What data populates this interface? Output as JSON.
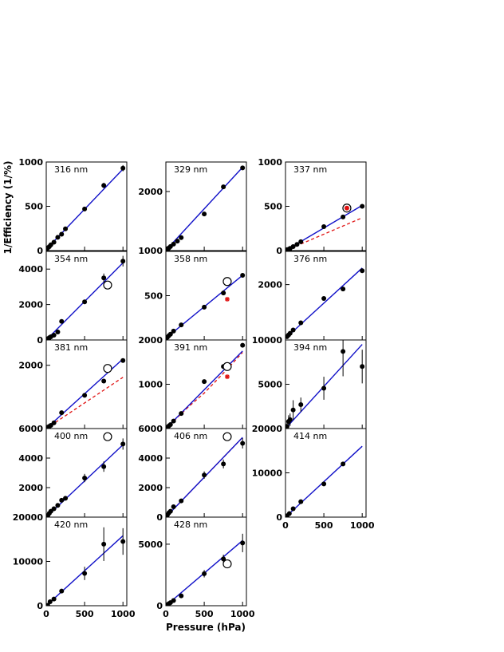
{
  "figure": {
    "ylabel": "1/Efficiency (1/%)",
    "xlabel": "Pressure (hPa)",
    "x_tick_labels": [
      "0",
      "500",
      "1000"
    ]
  },
  "colors": {
    "fit_line": "#1010c8",
    "dashed_line": "#e01010",
    "points": "#000000",
    "star_marker": "#e01010",
    "axes": "#000000"
  },
  "chart_data": [
    {
      "type": "scatter",
      "label": "316 nm",
      "xlim": [
        0,
        1050
      ],
      "ylim": [
        0,
        1000
      ],
      "yticks": [
        0,
        500,
        1000
      ],
      "yticklabels": [
        "0",
        "500",
        "1000"
      ],
      "points": [
        [
          20,
          30
        ],
        [
          40,
          45
        ],
        [
          60,
          65
        ],
        [
          100,
          95
        ],
        [
          150,
          150
        ],
        [
          200,
          185
        ],
        [
          250,
          245
        ],
        [
          500,
          470
        ],
        [
          750,
          735
        ],
        [
          1000,
          930
        ]
      ],
      "yerr": [
        0,
        0,
        0,
        0,
        0,
        0,
        0,
        20,
        30,
        35
      ],
      "fit": [
        [
          0,
          15
        ],
        [
          1000,
          920
        ]
      ]
    },
    {
      "type": "scatter",
      "label": "329 nm",
      "xlim": [
        0,
        1050
      ],
      "ylim": [
        1000,
        2500
      ],
      "yticks": [
        1000,
        2000
      ],
      "yticklabels": [
        "1000",
        "2000"
      ],
      "points": [
        [
          20,
          1030
        ],
        [
          40,
          1045
        ],
        [
          60,
          1070
        ],
        [
          100,
          1110
        ],
        [
          150,
          1160
        ],
        [
          200,
          1220
        ],
        [
          500,
          1620
        ],
        [
          750,
          2080
        ],
        [
          1000,
          2400
        ]
      ],
      "fit": [
        [
          0,
          1005
        ],
        [
          1000,
          2410
        ]
      ]
    },
    {
      "type": "scatter",
      "label": "337 nm",
      "xlim": [
        0,
        1050
      ],
      "ylim": [
        0,
        1000
      ],
      "yticks": [
        0,
        500,
        1000
      ],
      "yticklabels": [
        "0",
        "500",
        "1000"
      ],
      "points": [
        [
          20,
          10
        ],
        [
          40,
          15
        ],
        [
          60,
          25
        ],
        [
          100,
          45
        ],
        [
          150,
          70
        ],
        [
          200,
          100
        ],
        [
          500,
          270
        ],
        [
          750,
          380
        ],
        [
          1000,
          500
        ]
      ],
      "fit": [
        [
          0,
          0
        ],
        [
          1000,
          510
        ]
      ],
      "dashed": [
        [
          0,
          0
        ],
        [
          1000,
          370
        ]
      ],
      "circled_star": [
        800,
        480
      ]
    },
    {
      "type": "scatter",
      "label": "354 nm",
      "xlim": [
        0,
        1050
      ],
      "ylim": [
        0,
        5000
      ],
      "yticks": [
        0,
        2000,
        4000
      ],
      "yticklabels": [
        "0",
        "2000",
        "4000"
      ],
      "points": [
        [
          20,
          70
        ],
        [
          40,
          130
        ],
        [
          60,
          180
        ],
        [
          100,
          270
        ],
        [
          150,
          450
        ],
        [
          200,
          1050
        ],
        [
          500,
          2150
        ],
        [
          750,
          3500
        ],
        [
          1000,
          4450
        ]
      ],
      "yerr": [
        0,
        0,
        0,
        0,
        0,
        0,
        0,
        250,
        300
      ],
      "fit": [
        [
          0,
          0
        ],
        [
          1000,
          4350
        ]
      ],
      "open_circle": [
        800,
        3100
      ]
    },
    {
      "type": "scatter",
      "label": "358 nm",
      "xlim": [
        0,
        1050
      ],
      "ylim": [
        0,
        1000
      ],
      "yticks": [
        500
      ],
      "yticklabels": [
        "500"
      ],
      "points": [
        [
          20,
          30
        ],
        [
          40,
          50
        ],
        [
          60,
          65
        ],
        [
          100,
          100
        ],
        [
          200,
          170
        ],
        [
          500,
          370
        ],
        [
          750,
          530
        ],
        [
          1000,
          730
        ]
      ],
      "fit": [
        [
          0,
          20
        ],
        [
          1000,
          730
        ]
      ],
      "open_circle": [
        800,
        660
      ],
      "star": [
        800,
        460
      ]
    },
    {
      "type": "scatter",
      "label": "376 nm",
      "xlim": [
        0,
        1050
      ],
      "ylim": [
        1000,
        2600
      ],
      "yticks": [
        2000
      ],
      "yticklabels": [
        "2000"
      ],
      "points": [
        [
          20,
          1060
        ],
        [
          40,
          1090
        ],
        [
          60,
          1120
        ],
        [
          100,
          1180
        ],
        [
          200,
          1310
        ],
        [
          500,
          1750
        ],
        [
          750,
          1920
        ],
        [
          1000,
          2250
        ]
      ],
      "fit": [
        [
          0,
          1030
        ],
        [
          1000,
          2300
        ]
      ]
    },
    {
      "type": "scatter",
      "label": "381 nm",
      "xlim": [
        0,
        1050
      ],
      "ylim": [
        0,
        2800
      ],
      "yticks": [
        2000
      ],
      "yticklabels": [
        "2000"
      ],
      "points": [
        [
          20,
          40
        ],
        [
          40,
          70
        ],
        [
          60,
          100
        ],
        [
          100,
          180
        ],
        [
          200,
          500
        ],
        [
          500,
          1050
        ],
        [
          750,
          1500
        ],
        [
          1000,
          2150
        ]
      ],
      "fit": [
        [
          0,
          0
        ],
        [
          1000,
          2200
        ]
      ],
      "dashed": [
        [
          0,
          0
        ],
        [
          1000,
          1620
        ]
      ],
      "open_circle": [
        800,
        1900
      ]
    },
    {
      "type": "scatter",
      "label": "391 nm",
      "xlim": [
        0,
        1050
      ],
      "ylim": [
        0,
        2000
      ],
      "yticks": [
        1000,
        2000
      ],
      "yticklabels": [
        "1000",
        "2000"
      ],
      "points": [
        [
          20,
          30
        ],
        [
          40,
          60
        ],
        [
          60,
          90
        ],
        [
          100,
          170
        ],
        [
          200,
          340
        ],
        [
          500,
          1060
        ],
        [
          750,
          1400
        ],
        [
          1000,
          1880
        ]
      ],
      "fit": [
        [
          0,
          0
        ],
        [
          1000,
          1750
        ]
      ],
      "dashed": [
        [
          0,
          0
        ],
        [
          300,
          500
        ],
        [
          500,
          800
        ],
        [
          750,
          1250
        ],
        [
          1000,
          1720
        ]
      ],
      "open_circle": [
        800,
        1400
      ],
      "star": [
        800,
        1170
      ]
    },
    {
      "type": "scatter",
      "label": "394 nm",
      "xlim": [
        0,
        1050
      ],
      "ylim": [
        0,
        10000
      ],
      "yticks": [
        5000,
        10000
      ],
      "yticklabels": [
        "5000",
        "10000"
      ],
      "points": [
        [
          20,
          250
        ],
        [
          40,
          800
        ],
        [
          60,
          1000
        ],
        [
          100,
          2100
        ],
        [
          200,
          2700
        ],
        [
          500,
          4550
        ],
        [
          750,
          8700
        ],
        [
          1000,
          7000
        ]
      ],
      "yerr": [
        400,
        700,
        700,
        1100,
        800,
        1300,
        2800,
        1900
      ],
      "fit": [
        [
          0,
          0
        ],
        [
          1000,
          9500
        ]
      ]
    },
    {
      "type": "scatter",
      "label": "400 nm",
      "xlim": [
        0,
        1050
      ],
      "ylim": [
        0,
        6000
      ],
      "yticks": [
        2000,
        4000,
        6000
      ],
      "yticklabels": [
        "2000",
        "4000",
        "6000"
      ],
      "points": [
        [
          20,
          100
        ],
        [
          40,
          260
        ],
        [
          60,
          400
        ],
        [
          100,
          570
        ],
        [
          150,
          800
        ],
        [
          200,
          1140
        ],
        [
          250,
          1280
        ],
        [
          500,
          2650
        ],
        [
          750,
          3420
        ],
        [
          1000,
          4950
        ]
      ],
      "yerr": [
        0,
        0,
        0,
        0,
        0,
        0,
        0,
        280,
        350,
        380
      ],
      "fit": [
        [
          0,
          0
        ],
        [
          1000,
          4900
        ]
      ],
      "open_circle": [
        800,
        5450
      ]
    },
    {
      "type": "scatter",
      "label": "406 nm",
      "xlim": [
        0,
        1050
      ],
      "ylim": [
        0,
        6000
      ],
      "yticks": [
        0,
        2000,
        4000,
        6000
      ],
      "yticklabels": [
        "0",
        "2000",
        "4000",
        "6000"
      ],
      "points": [
        [
          20,
          150
        ],
        [
          40,
          300
        ],
        [
          60,
          400
        ],
        [
          100,
          700
        ],
        [
          200,
          1100
        ],
        [
          500,
          2850
        ],
        [
          750,
          3600
        ],
        [
          1000,
          5000
        ]
      ],
      "yerr": [
        0,
        0,
        0,
        0,
        0,
        250,
        300,
        350
      ],
      "fit": [
        [
          0,
          0
        ],
        [
          1000,
          5400
        ]
      ],
      "dashed": [
        [
          0,
          0
        ],
        [
          1000,
          5400
        ]
      ],
      "open_circle": [
        800,
        5450
      ]
    },
    {
      "type": "scatter",
      "label": "414 nm",
      "xlim": [
        0,
        1050
      ],
      "ylim": [
        0,
        20000
      ],
      "yticks": [
        0,
        10000,
        20000
      ],
      "yticklabels": [
        "0",
        "10000",
        "20000"
      ],
      "points": [
        [
          20,
          300
        ],
        [
          50,
          800
        ],
        [
          100,
          1900
        ],
        [
          200,
          3500
        ],
        [
          500,
          7500
        ],
        [
          750,
          12000
        ]
      ],
      "fit": [
        [
          0,
          0
        ],
        [
          1000,
          16000
        ]
      ]
    },
    {
      "type": "scatter",
      "label": "420 nm",
      "xlim": [
        0,
        1050
      ],
      "ylim": [
        0,
        20000
      ],
      "yticks": [
        0,
        10000,
        20000
      ],
      "yticklabels": [
        "0",
        "10000",
        "20000"
      ],
      "points": [
        [
          20,
          100
        ],
        [
          50,
          900
        ],
        [
          100,
          1500
        ],
        [
          200,
          3300
        ],
        [
          500,
          7300
        ],
        [
          750,
          13900
        ],
        [
          1000,
          14500
        ]
      ],
      "yerr": [
        0,
        0,
        0,
        0,
        1500,
        3800,
        3000
      ],
      "fit": [
        [
          0,
          0
        ],
        [
          1000,
          15800
        ]
      ]
    },
    {
      "type": "scatter",
      "label": "428 nm",
      "xlim": [
        0,
        1050
      ],
      "ylim": [
        0,
        7200
      ],
      "yticks": [
        0,
        5000
      ],
      "yticklabels": [
        "0",
        "5000"
      ],
      "points": [
        [
          20,
          80
        ],
        [
          40,
          170
        ],
        [
          60,
          250
        ],
        [
          100,
          420
        ],
        [
          200,
          800
        ],
        [
          500,
          2600
        ],
        [
          750,
          3800
        ],
        [
          1000,
          5100
        ]
      ],
      "yerr": [
        0,
        0,
        0,
        0,
        0,
        300,
        350,
        750
      ],
      "fit": [
        [
          0,
          0
        ],
        [
          1000,
          5300
        ]
      ],
      "open_circle": [
        800,
        3400
      ]
    }
  ]
}
